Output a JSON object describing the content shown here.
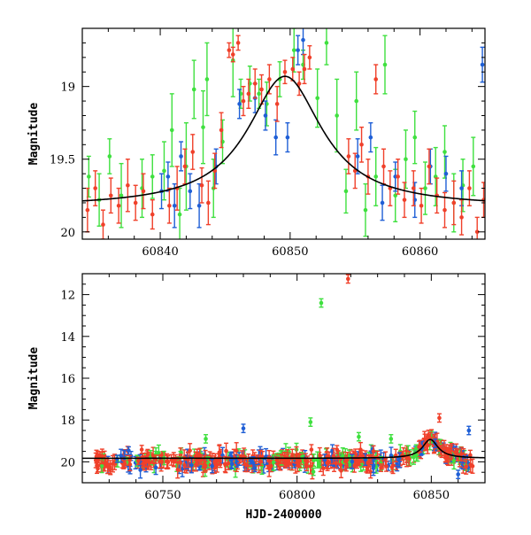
{
  "colors": {
    "green": "#3fe03f",
    "blue": "#1f5fd6",
    "red": "#f0402a",
    "curve": "#000000"
  },
  "chart_data": [
    {
      "type": "scatter",
      "panel": "top",
      "ylabel": "Magnitude",
      "xlabel": "",
      "xlim": [
        60834,
        60865
      ],
      "ylim": [
        20.05,
        18.6
      ],
      "y_inverted": true,
      "xticks": [
        60840,
        60850,
        60860
      ],
      "yticks": [
        19,
        19.5,
        20
      ],
      "ytick_labels": [
        "19",
        "19.5",
        "20"
      ],
      "model_curve": {
        "peak_x": 60849.6,
        "peak_mag": 18.93,
        "base_mag": 19.83,
        "width": 3.5
      },
      "series": [
        {
          "color_key": "green",
          "points": [
            [
              60834.5,
              19.62,
              0.14
            ],
            [
              60835.3,
              19.78,
              0.18
            ],
            [
              60836.1,
              19.48,
              0.12
            ],
            [
              60837.0,
              19.75,
              0.22
            ],
            [
              60838.6,
              19.7,
              0.2
            ],
            [
              60839.4,
              19.62,
              0.15
            ],
            [
              60840.3,
              19.58,
              0.2
            ],
            [
              60840.9,
              19.3,
              0.25
            ],
            [
              60841.5,
              19.88,
              0.18
            ],
            [
              60842.0,
              19.55,
              0.3
            ],
            [
              60842.6,
              19.02,
              0.2
            ],
            [
              60843.3,
              19.28,
              0.25
            ],
            [
              60843.6,
              18.95,
              0.25
            ],
            [
              60844.1,
              19.7,
              0.2
            ],
            [
              60844.8,
              19.38,
              0.15
            ],
            [
              60845.6,
              18.82,
              0.25
            ],
            [
              60846.2,
              19.05,
              0.1
            ],
            [
              60846.9,
              18.98,
              0.12
            ],
            [
              60847.6,
              19.05,
              0.1
            ],
            [
              60848.2,
              19.12,
              0.15
            ],
            [
              60849.2,
              18.95,
              0.12
            ],
            [
              60850.3,
              18.75,
              0.15
            ],
            [
              60851.0,
              18.85,
              0.1
            ],
            [
              60852.1,
              19.08,
              0.2
            ],
            [
              60852.8,
              18.7,
              0.15
            ],
            [
              60853.6,
              19.2,
              0.25
            ],
            [
              60854.3,
              19.72,
              0.15
            ],
            [
              60855.1,
              19.1,
              0.2
            ],
            [
              60855.8,
              19.85,
              0.18
            ],
            [
              60856.6,
              19.62,
              0.2
            ],
            [
              60857.3,
              18.85,
              0.2
            ],
            [
              60858.1,
              19.75,
              0.18
            ],
            [
              60858.9,
              19.5,
              0.2
            ],
            [
              60859.6,
              19.35,
              0.18
            ],
            [
              60860.4,
              19.7,
              0.18
            ],
            [
              60861.2,
              19.62,
              0.2
            ],
            [
              60861.9,
              19.45,
              0.18
            ],
            [
              60862.6,
              19.8,
              0.2
            ],
            [
              60863.3,
              19.68,
              0.18
            ],
            [
              60864.1,
              19.55,
              0.2
            ]
          ]
        },
        {
          "color_key": "blue",
          "points": [
            [
              60840.1,
              19.72,
              0.12
            ],
            [
              60840.6,
              19.62,
              0.1
            ],
            [
              60841.1,
              19.82,
              0.15
            ],
            [
              60841.6,
              19.48,
              0.1
            ],
            [
              60842.3,
              19.72,
              0.12
            ],
            [
              60843.0,
              19.82,
              0.15
            ],
            [
              60844.3,
              19.55,
              0.12
            ],
            [
              60846.1,
              19.12,
              0.1
            ],
            [
              60847.3,
              19.08,
              0.1
            ],
            [
              60848.1,
              19.2,
              0.1
            ],
            [
              60848.9,
              19.35,
              0.12
            ],
            [
              60849.8,
              19.35,
              0.1
            ],
            [
              60850.6,
              18.75,
              0.1
            ],
            [
              60851.0,
              18.68,
              0.1
            ],
            [
              60855.2,
              19.48,
              0.12
            ],
            [
              60856.2,
              19.35,
              0.1
            ],
            [
              60857.1,
              19.8,
              0.12
            ],
            [
              60858.1,
              19.62,
              0.1
            ],
            [
              60859.6,
              19.78,
              0.12
            ],
            [
              60860.8,
              19.55,
              0.12
            ],
            [
              60862.0,
              19.6,
              0.12
            ],
            [
              60863.2,
              19.7,
              0.12
            ],
            [
              60864.8,
              18.85,
              0.12
            ]
          ]
        },
        {
          "color_key": "red",
          "points": [
            [
              60834.4,
              19.85,
              0.15
            ],
            [
              60835.0,
              19.7,
              0.12
            ],
            [
              60835.6,
              19.95,
              0.1
            ],
            [
              60836.2,
              19.75,
              0.12
            ],
            [
              60836.8,
              19.82,
              0.12
            ],
            [
              60837.5,
              19.68,
              0.18
            ],
            [
              60838.1,
              19.8,
              0.12
            ],
            [
              60838.7,
              19.72,
              0.12
            ],
            [
              60839.4,
              19.88,
              0.1
            ],
            [
              60840.7,
              19.82,
              0.12
            ],
            [
              60841.3,
              19.7,
              0.15
            ],
            [
              60841.9,
              19.55,
              0.12
            ],
            [
              60842.5,
              19.45,
              0.12
            ],
            [
              60843.2,
              19.68,
              0.12
            ],
            [
              60843.7,
              19.8,
              0.15
            ],
            [
              60844.2,
              19.58,
              0.12
            ],
            [
              60844.7,
              19.3,
              0.12
            ],
            [
              60845.3,
              18.75,
              0.05
            ],
            [
              60845.6,
              18.78,
              0.05
            ],
            [
              60846.0,
              18.7,
              0.05
            ],
            [
              60846.4,
              19.1,
              0.1
            ],
            [
              60846.8,
              19.05,
              0.1
            ],
            [
              60847.3,
              18.98,
              0.1
            ],
            [
              60847.8,
              19.02,
              0.1
            ],
            [
              60848.4,
              18.95,
              0.1
            ],
            [
              60849.0,
              19.12,
              0.12
            ],
            [
              60849.6,
              18.9,
              0.08
            ],
            [
              60850.2,
              18.88,
              0.08
            ],
            [
              60850.7,
              18.98,
              0.08
            ],
            [
              60851.1,
              18.88,
              0.1
            ],
            [
              60851.5,
              18.8,
              0.08
            ],
            [
              60854.5,
              19.48,
              0.12
            ],
            [
              60855.0,
              19.58,
              0.12
            ],
            [
              60855.5,
              19.4,
              0.12
            ],
            [
              60856.0,
              19.62,
              0.12
            ],
            [
              60856.6,
              18.95,
              0.1
            ],
            [
              60857.2,
              19.55,
              0.12
            ],
            [
              60857.7,
              19.7,
              0.12
            ],
            [
              60858.3,
              19.62,
              0.12
            ],
            [
              60858.8,
              19.78,
              0.12
            ],
            [
              60859.5,
              19.7,
              0.12
            ],
            [
              60860.1,
              19.82,
              0.12
            ],
            [
              60860.7,
              19.55,
              0.12
            ],
            [
              60861.3,
              19.75,
              0.12
            ],
            [
              60861.9,
              19.85,
              0.12
            ],
            [
              60862.6,
              19.8,
              0.15
            ],
            [
              60863.2,
              19.9,
              0.12
            ],
            [
              60863.8,
              19.7,
              0.12
            ],
            [
              60864.4,
              20.0,
              0.1
            ],
            [
              60864.9,
              19.78,
              0.12
            ]
          ]
        }
      ]
    },
    {
      "type": "scatter",
      "panel": "bottom",
      "ylabel": "Magnitude",
      "xlabel": "HJD-2400000",
      "xlim": [
        60720,
        60870
      ],
      "ylim": [
        21,
        11
      ],
      "y_inverted": true,
      "xticks": [
        60750,
        60800,
        60850
      ],
      "yticks": [
        12,
        14,
        16,
        18,
        20
      ],
      "ytick_labels": [
        "12",
        "14",
        "16",
        "18",
        "20"
      ],
      "model_curve": {
        "peak_x": 60849.6,
        "peak_mag": 18.93,
        "base_mag": 19.83,
        "width": 3.5
      },
      "baseline": {
        "x_start": 60725,
        "x_end": 60866,
        "y_center": 19.95,
        "y_spread": 0.55
      },
      "outliers": [
        {
          "color_key": "red",
          "x": 60819,
          "y": 11.25
        },
        {
          "color_key": "green",
          "x": 60809,
          "y": 12.4
        },
        {
          "color_key": "green",
          "x": 60805,
          "y": 18.1
        },
        {
          "color_key": "blue",
          "x": 60780,
          "y": 18.4
        },
        {
          "color_key": "green",
          "x": 60766,
          "y": 18.9
        },
        {
          "color_key": "green",
          "x": 60823,
          "y": 18.8
        },
        {
          "color_key": "blue",
          "x": 60864,
          "y": 18.5
        },
        {
          "color_key": "red",
          "x": 60853,
          "y": 17.9
        },
        {
          "color_key": "green",
          "x": 60835,
          "y": 18.9
        },
        {
          "color_key": "blue",
          "x": 60860,
          "y": 20.6
        }
      ]
    }
  ]
}
